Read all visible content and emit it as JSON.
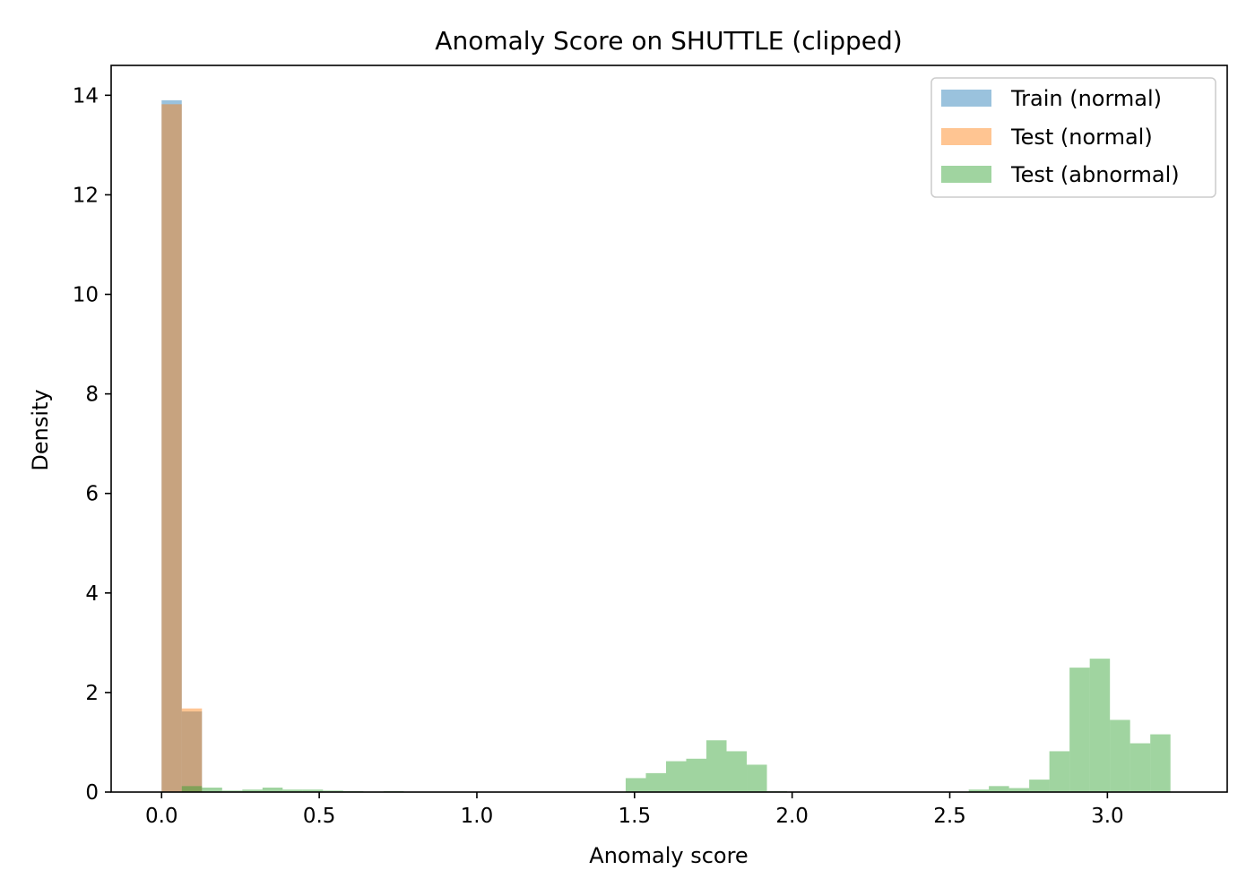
{
  "chart_data": {
    "type": "bar",
    "title": "Anomaly Score on SHUTTLE (clipped)",
    "xlabel": "Anomaly score",
    "ylabel": "Density",
    "xlim": [
      -0.16,
      3.38
    ],
    "ylim": [
      0,
      14.6
    ],
    "x_ticks": [
      0.0,
      0.5,
      1.0,
      1.5,
      2.0,
      2.5,
      3.0
    ],
    "x_tick_labels": [
      "0.0",
      "0.5",
      "1.0",
      "1.5",
      "2.0",
      "2.5",
      "3.0"
    ],
    "y_ticks": [
      0,
      2,
      4,
      6,
      8,
      10,
      12,
      14
    ],
    "y_tick_labels": [
      "0",
      "2",
      "4",
      "6",
      "8",
      "10",
      "12",
      "14"
    ],
    "grid": false,
    "legend_position": "top-right",
    "series": [
      {
        "name": "Train (normal)",
        "color": "#1f77b4",
        "alpha": 0.45,
        "bins": [
          {
            "x0": 0.0,
            "x1": 0.064,
            "value": 13.9
          },
          {
            "x0": 0.064,
            "x1": 0.128,
            "value": 1.62
          }
        ]
      },
      {
        "name": "Test (normal)",
        "color": "#ff7f0e",
        "alpha": 0.45,
        "bins": [
          {
            "x0": 0.0,
            "x1": 0.064,
            "value": 13.82
          },
          {
            "x0": 0.064,
            "x1": 0.128,
            "value": 1.68
          }
        ]
      },
      {
        "name": "Test (abnormal)",
        "color": "#2ca02c",
        "alpha": 0.45,
        "bins": [
          {
            "x0": 0.0,
            "x1": 0.064,
            "value": 0.0
          },
          {
            "x0": 0.064,
            "x1": 0.128,
            "value": 0.12
          },
          {
            "x0": 0.128,
            "x1": 0.192,
            "value": 0.09
          },
          {
            "x0": 0.192,
            "x1": 0.256,
            "value": 0.03
          },
          {
            "x0": 0.256,
            "x1": 0.32,
            "value": 0.05
          },
          {
            "x0": 0.32,
            "x1": 0.384,
            "value": 0.09
          },
          {
            "x0": 0.384,
            "x1": 0.448,
            "value": 0.05
          },
          {
            "x0": 0.448,
            "x1": 0.512,
            "value": 0.05
          },
          {
            "x0": 0.512,
            "x1": 0.576,
            "value": 0.03
          },
          {
            "x0": 0.576,
            "x1": 0.64,
            "value": 0.02
          },
          {
            "x0": 0.64,
            "x1": 0.704,
            "value": 0.01
          },
          {
            "x0": 0.704,
            "x1": 0.768,
            "value": 0.02
          },
          {
            "x0": 0.768,
            "x1": 1.472,
            "value": 0.0
          },
          {
            "x0": 1.472,
            "x1": 1.536,
            "value": 0.28
          },
          {
            "x0": 1.536,
            "x1": 1.6,
            "value": 0.38
          },
          {
            "x0": 1.6,
            "x1": 1.664,
            "value": 0.62
          },
          {
            "x0": 1.664,
            "x1": 1.728,
            "value": 0.67
          },
          {
            "x0": 1.728,
            "x1": 1.792,
            "value": 1.04
          },
          {
            "x0": 1.792,
            "x1": 1.856,
            "value": 0.82
          },
          {
            "x0": 1.856,
            "x1": 1.92,
            "value": 0.55
          },
          {
            "x0": 1.92,
            "x1": 1.984,
            "value": 0.02
          },
          {
            "x0": 1.984,
            "x1": 2.56,
            "value": 0.0
          },
          {
            "x0": 2.56,
            "x1": 2.624,
            "value": 0.05
          },
          {
            "x0": 2.624,
            "x1": 2.688,
            "value": 0.12
          },
          {
            "x0": 2.688,
            "x1": 2.752,
            "value": 0.08
          },
          {
            "x0": 2.752,
            "x1": 2.816,
            "value": 0.25
          },
          {
            "x0": 2.816,
            "x1": 2.88,
            "value": 0.82
          },
          {
            "x0": 2.88,
            "x1": 2.944,
            "value": 2.5
          },
          {
            "x0": 2.944,
            "x1": 3.008,
            "value": 2.68
          },
          {
            "x0": 3.008,
            "x1": 3.072,
            "value": 1.45
          },
          {
            "x0": 3.072,
            "x1": 3.136,
            "value": 0.98
          },
          {
            "x0": 3.136,
            "x1": 3.2,
            "value": 1.16
          }
        ]
      }
    ]
  }
}
